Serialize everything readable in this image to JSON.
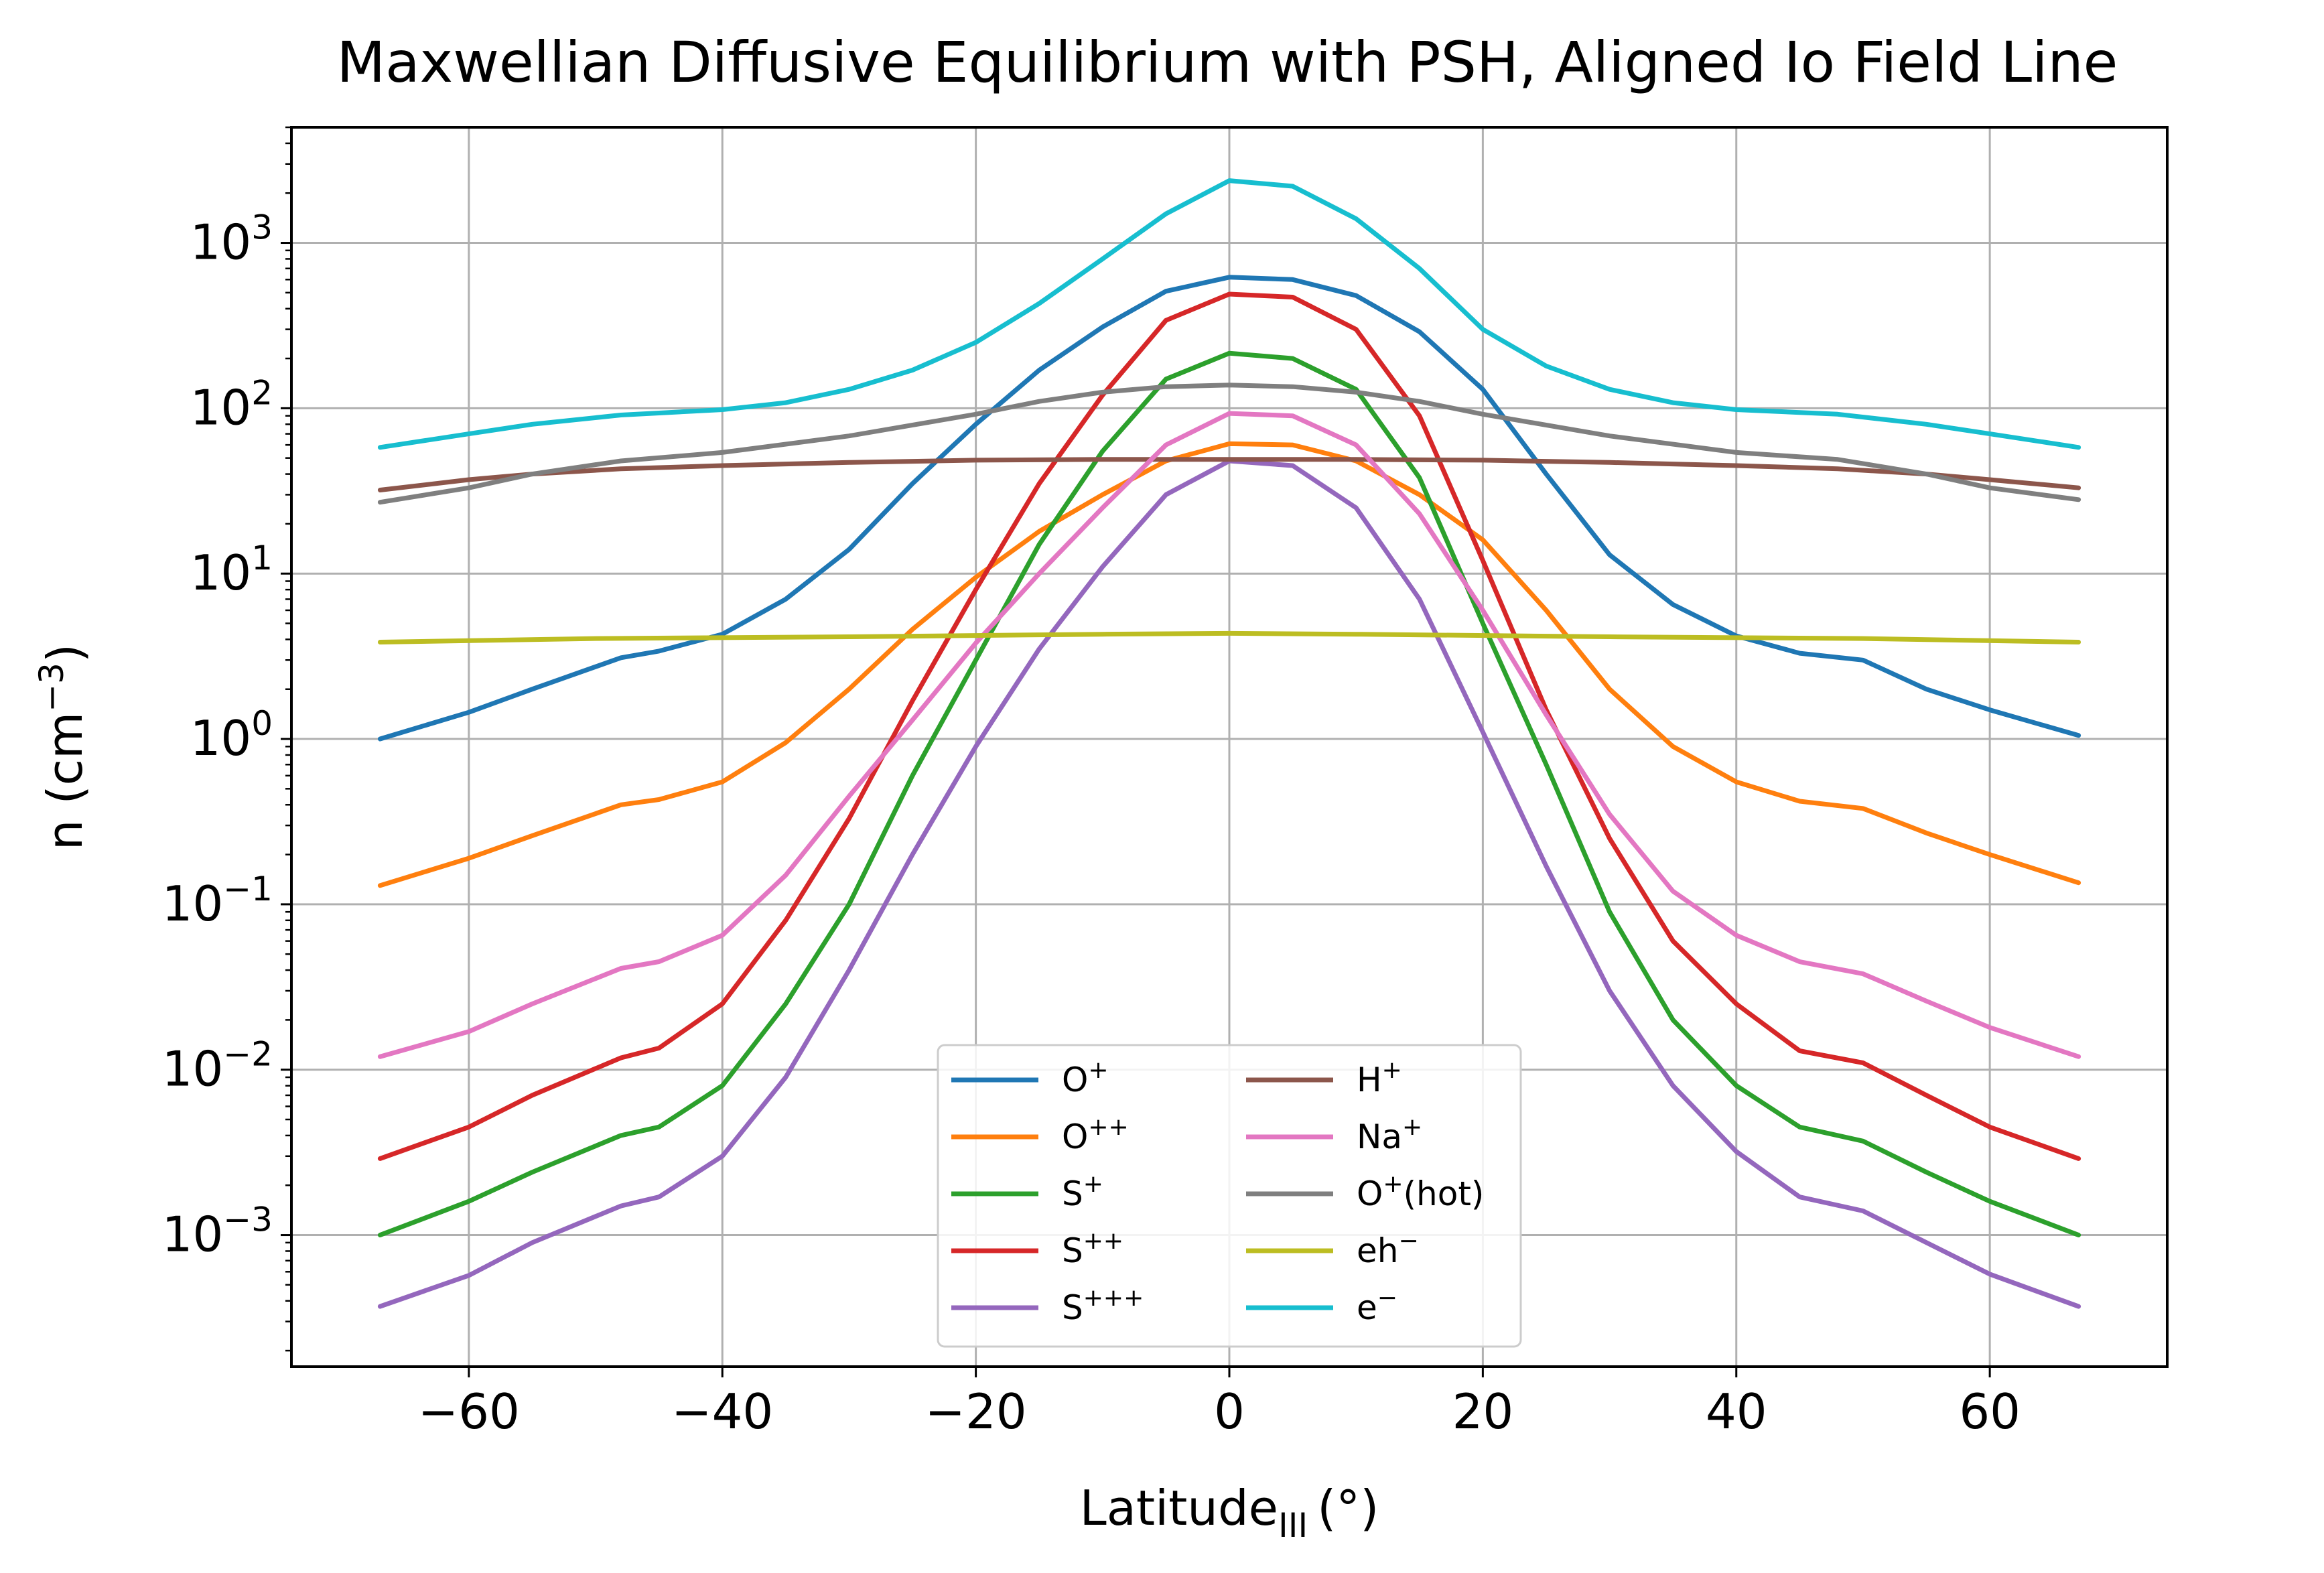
{
  "chart_data": {
    "type": "line",
    "title": "Maxwellian Diffusive Equilibrium with PSH, Aligned Io Field Line",
    "xlabel": "Latitude",
    "xlabel_sub": "III",
    "xlabel_unit": "(°)",
    "ylabel": "n (cm",
    "ylabel_sup": "−3",
    "ylabel_close": ")",
    "yscale": "log",
    "xlim": [
      -74,
      74
    ],
    "ylim": [
      0.00016,
      5000
    ],
    "grid": true,
    "legend_position": "bottom-center",
    "x_ticks": [
      {
        "value": -60,
        "label": "−60"
      },
      {
        "value": -40,
        "label": "−40"
      },
      {
        "value": -20,
        "label": "−20"
      },
      {
        "value": 0,
        "label": "0"
      },
      {
        "value": 20,
        "label": "20"
      },
      {
        "value": 40,
        "label": "40"
      },
      {
        "value": 60,
        "label": "60"
      }
    ],
    "y_ticks": [
      {
        "value": 1000,
        "base": "10",
        "exp": "3"
      },
      {
        "value": 100,
        "base": "10",
        "exp": "2"
      },
      {
        "value": 10,
        "base": "10",
        "exp": "1"
      },
      {
        "value": 1,
        "base": "10",
        "exp": "0"
      },
      {
        "value": 0.1,
        "base": "10",
        "exp": "−1"
      },
      {
        "value": 0.01,
        "base": "10",
        "exp": "−2"
      },
      {
        "value": 0.001,
        "base": "10",
        "exp": "−3"
      }
    ],
    "series": [
      {
        "name": "O",
        "sup": "+",
        "color": "#1f77b4",
        "points": [
          [
            -67,
            1.0
          ],
          [
            -60,
            1.45
          ],
          [
            -55,
            2.0
          ],
          [
            -48,
            3.1
          ],
          [
            -45,
            3.4
          ],
          [
            -40,
            4.3
          ],
          [
            -35,
            7.0
          ],
          [
            -30,
            14
          ],
          [
            -25,
            35
          ],
          [
            -20,
            80
          ],
          [
            -15,
            170
          ],
          [
            -10,
            310
          ],
          [
            -5,
            510
          ],
          [
            0,
            620
          ],
          [
            5,
            600
          ],
          [
            10,
            480
          ],
          [
            15,
            290
          ],
          [
            20,
            130
          ],
          [
            25,
            40
          ],
          [
            30,
            13
          ],
          [
            35,
            6.5
          ],
          [
            40,
            4.2
          ],
          [
            45,
            3.3
          ],
          [
            50,
            3.0
          ],
          [
            55,
            2.0
          ],
          [
            60,
            1.5
          ],
          [
            67,
            1.05
          ]
        ]
      },
      {
        "name": "O",
        "sup": "++",
        "color": "#ff7f0e",
        "points": [
          [
            -67,
            0.13
          ],
          [
            -60,
            0.19
          ],
          [
            -55,
            0.26
          ],
          [
            -48,
            0.4
          ],
          [
            -45,
            0.43
          ],
          [
            -40,
            0.55
          ],
          [
            -35,
            0.95
          ],
          [
            -30,
            2.0
          ],
          [
            -25,
            4.6
          ],
          [
            -20,
            9.5
          ],
          [
            -15,
            18
          ],
          [
            -10,
            30
          ],
          [
            -5,
            48
          ],
          [
            0,
            61
          ],
          [
            5,
            60
          ],
          [
            10,
            48
          ],
          [
            15,
            30
          ],
          [
            20,
            16
          ],
          [
            25,
            6.0
          ],
          [
            30,
            2.0
          ],
          [
            35,
            0.9
          ],
          [
            40,
            0.55
          ],
          [
            45,
            0.42
          ],
          [
            50,
            0.38
          ],
          [
            55,
            0.27
          ],
          [
            60,
            0.2
          ],
          [
            67,
            0.135
          ]
        ]
      },
      {
        "name": "S",
        "sup": "+",
        "color": "#2ca02c",
        "points": [
          [
            -67,
            0.001
          ],
          [
            -60,
            0.0016
          ],
          [
            -55,
            0.0024
          ],
          [
            -48,
            0.004
          ],
          [
            -45,
            0.0045
          ],
          [
            -40,
            0.008
          ],
          [
            -35,
            0.025
          ],
          [
            -30,
            0.1
          ],
          [
            -25,
            0.6
          ],
          [
            -20,
            3
          ],
          [
            -15,
            15
          ],
          [
            -10,
            55
          ],
          [
            -5,
            150
          ],
          [
            0,
            215
          ],
          [
            5,
            200
          ],
          [
            10,
            130
          ],
          [
            15,
            38
          ],
          [
            20,
            5
          ],
          [
            25,
            0.7
          ],
          [
            30,
            0.09
          ],
          [
            35,
            0.02
          ],
          [
            40,
            0.008
          ],
          [
            45,
            0.0045
          ],
          [
            50,
            0.0037
          ],
          [
            55,
            0.0024
          ],
          [
            60,
            0.0016
          ],
          [
            67,
            0.001
          ]
        ]
      },
      {
        "name": "S",
        "sup": "++",
        "color": "#d62728",
        "points": [
          [
            -67,
            0.0029
          ],
          [
            -60,
            0.0045
          ],
          [
            -55,
            0.007
          ],
          [
            -48,
            0.0118
          ],
          [
            -45,
            0.0135
          ],
          [
            -40,
            0.025
          ],
          [
            -35,
            0.08
          ],
          [
            -30,
            0.33
          ],
          [
            -25,
            1.7
          ],
          [
            -20,
            8
          ],
          [
            -15,
            35
          ],
          [
            -10,
            120
          ],
          [
            -5,
            340
          ],
          [
            0,
            490
          ],
          [
            5,
            470
          ],
          [
            10,
            300
          ],
          [
            15,
            90
          ],
          [
            20,
            12
          ],
          [
            25,
            1.5
          ],
          [
            30,
            0.25
          ],
          [
            35,
            0.06
          ],
          [
            40,
            0.025
          ],
          [
            45,
            0.013
          ],
          [
            50,
            0.011
          ],
          [
            55,
            0.007
          ],
          [
            60,
            0.0045
          ],
          [
            67,
            0.0029
          ]
        ]
      },
      {
        "name": "S",
        "sup": "+++",
        "color": "#9467bd",
        "points": [
          [
            -67,
            0.00037
          ],
          [
            -60,
            0.00057
          ],
          [
            -55,
            0.0009
          ],
          [
            -48,
            0.0015
          ],
          [
            -45,
            0.0017
          ],
          [
            -40,
            0.003
          ],
          [
            -35,
            0.009
          ],
          [
            -30,
            0.04
          ],
          [
            -25,
            0.2
          ],
          [
            -20,
            0.9
          ],
          [
            -15,
            3.5
          ],
          [
            -10,
            11
          ],
          [
            -5,
            30
          ],
          [
            0,
            48
          ],
          [
            5,
            45
          ],
          [
            10,
            25
          ],
          [
            15,
            7
          ],
          [
            20,
            1.1
          ],
          [
            25,
            0.17
          ],
          [
            30,
            0.03
          ],
          [
            35,
            0.008
          ],
          [
            40,
            0.0032
          ],
          [
            45,
            0.0017
          ],
          [
            50,
            0.0014
          ],
          [
            55,
            0.0009
          ],
          [
            60,
            0.00058
          ],
          [
            67,
            0.00037
          ]
        ]
      },
      {
        "name": "H",
        "sup": "+",
        "color": "#8c564b",
        "points": [
          [
            -67,
            32
          ],
          [
            -60,
            37
          ],
          [
            -55,
            40
          ],
          [
            -48,
            43
          ],
          [
            -40,
            45
          ],
          [
            -30,
            47
          ],
          [
            -20,
            48.5
          ],
          [
            -10,
            49
          ],
          [
            0,
            49
          ],
          [
            10,
            49
          ],
          [
            20,
            48.5
          ],
          [
            30,
            47
          ],
          [
            40,
            45
          ],
          [
            48,
            43
          ],
          [
            55,
            40
          ],
          [
            60,
            37
          ],
          [
            67,
            33
          ]
        ]
      },
      {
        "name": "Na",
        "sup": "+",
        "color": "#e377c2",
        "points": [
          [
            -67,
            0.012
          ],
          [
            -60,
            0.017
          ],
          [
            -55,
            0.025
          ],
          [
            -48,
            0.041
          ],
          [
            -45,
            0.045
          ],
          [
            -40,
            0.065
          ],
          [
            -35,
            0.15
          ],
          [
            -30,
            0.45
          ],
          [
            -25,
            1.3
          ],
          [
            -20,
            3.8
          ],
          [
            -15,
            10
          ],
          [
            -10,
            25
          ],
          [
            -5,
            60
          ],
          [
            0,
            93
          ],
          [
            5,
            90
          ],
          [
            10,
            60
          ],
          [
            15,
            23
          ],
          [
            20,
            6
          ],
          [
            25,
            1.4
          ],
          [
            30,
            0.35
          ],
          [
            35,
            0.12
          ],
          [
            40,
            0.065
          ],
          [
            45,
            0.045
          ],
          [
            50,
            0.038
          ],
          [
            55,
            0.026
          ],
          [
            60,
            0.018
          ],
          [
            67,
            0.012
          ]
        ]
      },
      {
        "name": "O",
        "sup": "+",
        "suffix": "(hot)",
        "color": "#7f7f7f",
        "points": [
          [
            -67,
            27
          ],
          [
            -60,
            33
          ],
          [
            -55,
            40
          ],
          [
            -48,
            48
          ],
          [
            -40,
            54
          ],
          [
            -30,
            68
          ],
          [
            -20,
            92
          ],
          [
            -15,
            110
          ],
          [
            -10,
            125
          ],
          [
            -5,
            135
          ],
          [
            0,
            138
          ],
          [
            5,
            135
          ],
          [
            10,
            125
          ],
          [
            15,
            110
          ],
          [
            20,
            92
          ],
          [
            30,
            68
          ],
          [
            40,
            54
          ],
          [
            48,
            49
          ],
          [
            55,
            40
          ],
          [
            60,
            33
          ],
          [
            67,
            28
          ]
        ]
      },
      {
        "name": "eh",
        "sup": "−",
        "color": "#bcbd22",
        "points": [
          [
            -67,
            3.85
          ],
          [
            -50,
            4.05
          ],
          [
            -30,
            4.15
          ],
          [
            -10,
            4.3
          ],
          [
            0,
            4.35
          ],
          [
            10,
            4.3
          ],
          [
            30,
            4.15
          ],
          [
            50,
            4.05
          ],
          [
            67,
            3.85
          ]
        ]
      },
      {
        "name": "e",
        "sup": "−",
        "color": "#17becf",
        "points": [
          [
            -67,
            58
          ],
          [
            -60,
            70
          ],
          [
            -55,
            80
          ],
          [
            -48,
            91
          ],
          [
            -40,
            98
          ],
          [
            -35,
            108
          ],
          [
            -30,
            130
          ],
          [
            -25,
            170
          ],
          [
            -20,
            250
          ],
          [
            -15,
            430
          ],
          [
            -10,
            800
          ],
          [
            -5,
            1500
          ],
          [
            0,
            2380
          ],
          [
            5,
            2200
          ],
          [
            10,
            1400
          ],
          [
            15,
            700
          ],
          [
            20,
            300
          ],
          [
            25,
            180
          ],
          [
            30,
            130
          ],
          [
            35,
            108
          ],
          [
            40,
            98
          ],
          [
            48,
            92
          ],
          [
            55,
            80
          ],
          [
            60,
            70
          ],
          [
            67,
            58
          ]
        ]
      }
    ]
  }
}
